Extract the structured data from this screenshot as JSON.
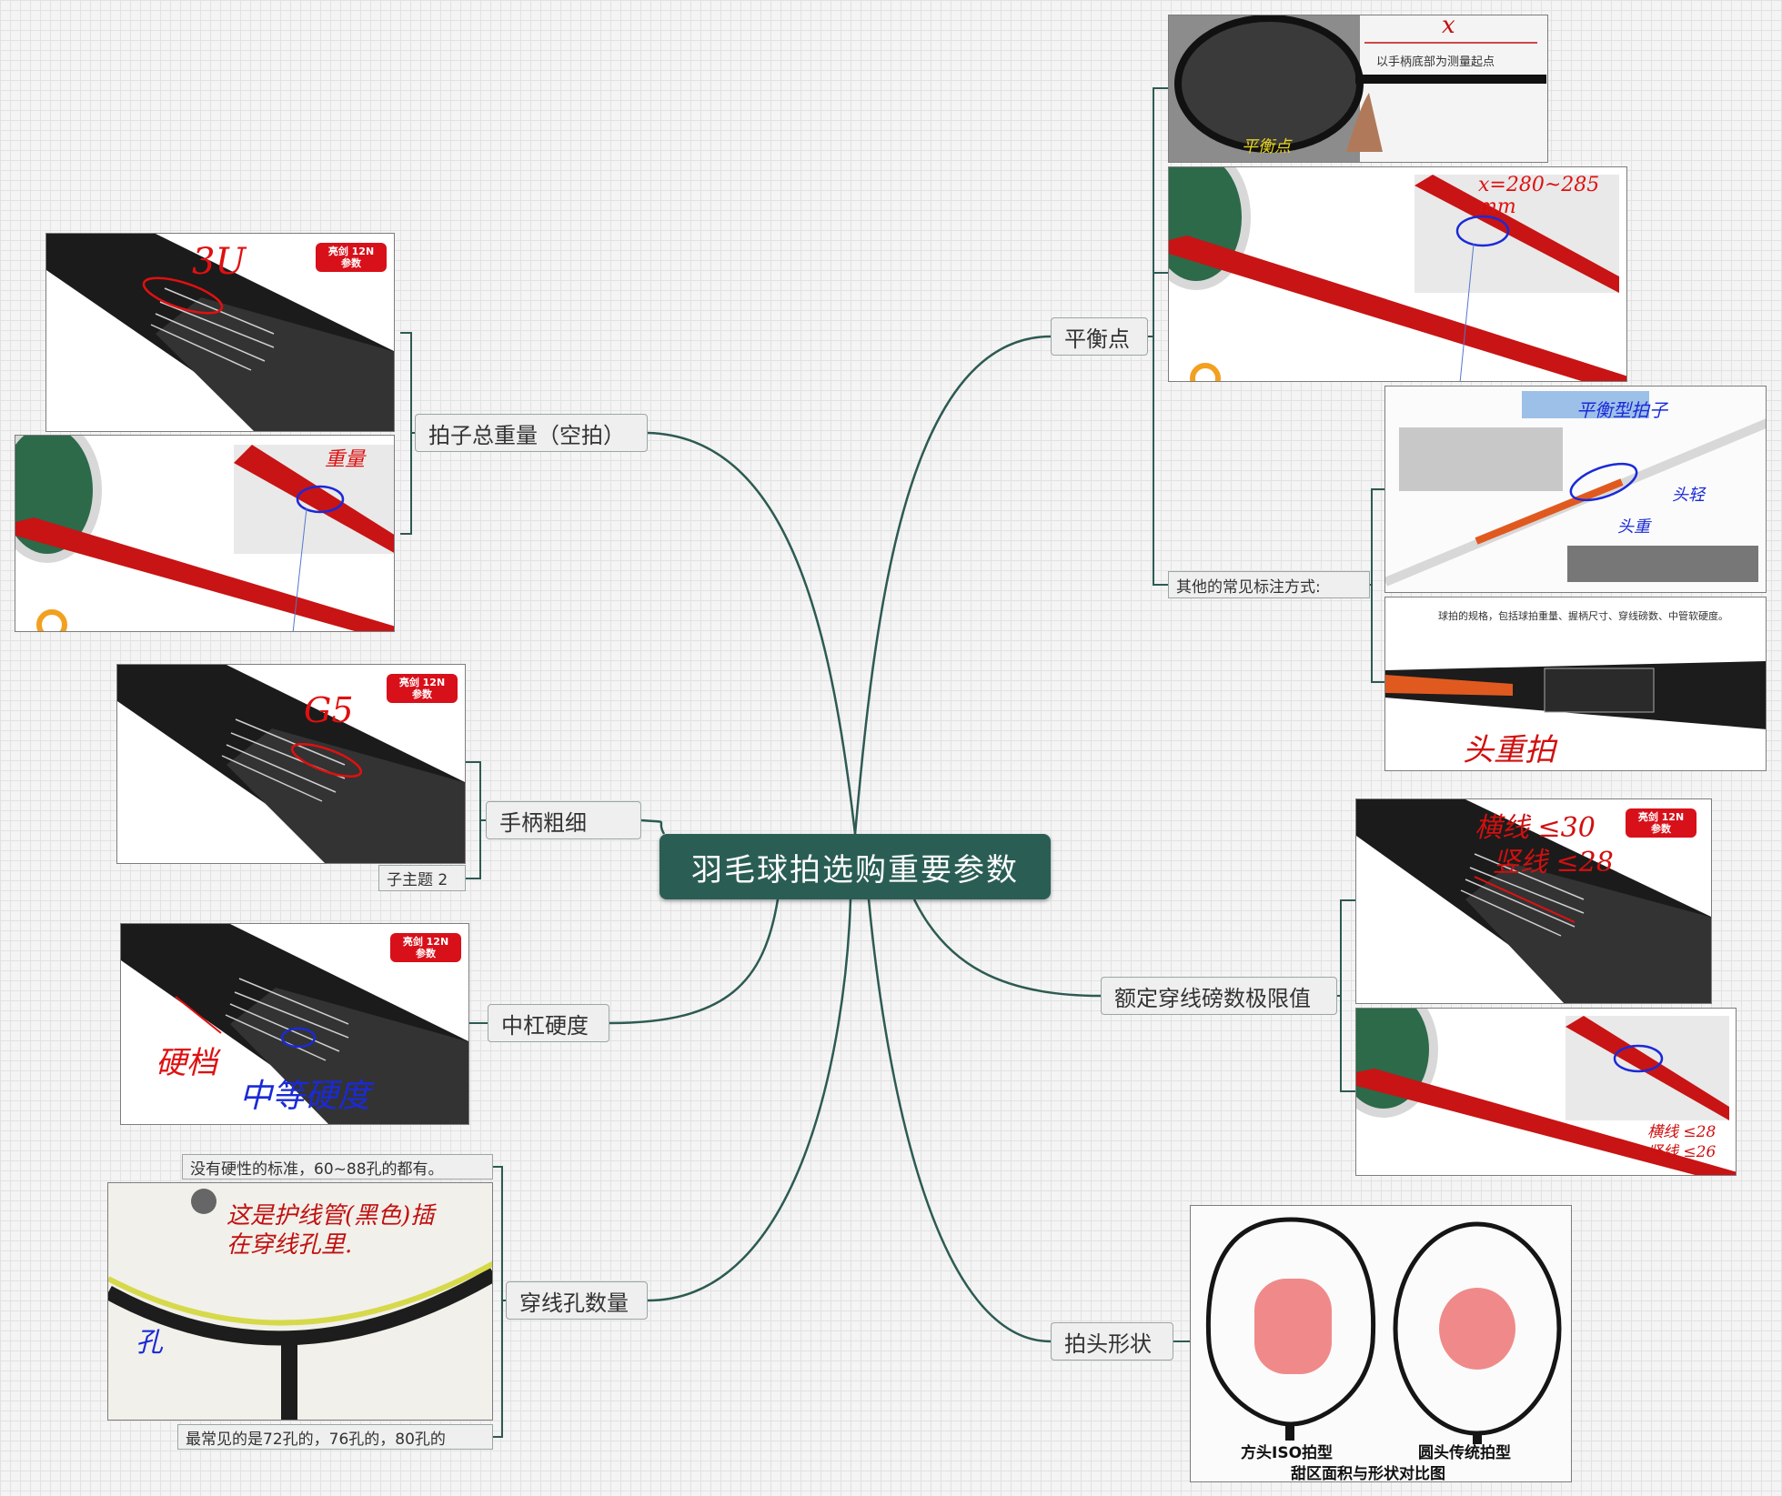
{
  "central": {
    "title": "羽毛球拍选购重要参数"
  },
  "branches": {
    "weight": "拍子总重量（空拍）",
    "grip": "手柄粗细",
    "subtopic": "子主题 2",
    "shaft": "中杠硬度",
    "holes": "穿线孔数量",
    "holes_note_top": "没有硬性的标准，60~88孔的都有。",
    "holes_note_bottom": "最常见的是72孔的，76孔的，80孔的",
    "balance": "平衡点",
    "balance_other": "其他的常见标注方式:",
    "tension": "额定穿线磅数极限值",
    "head": "拍头形状"
  },
  "images": {
    "badge": "亮剑 12N\n参数",
    "weight_hand": "3U",
    "weight_hand2": "重量",
    "grip_hand": "G5",
    "shaft_hand1": "硬档",
    "shaft_hand2": "中等硬度",
    "holes_hand": "这是护线管(黑色)插\n在穿线孔里.",
    "holes_hand2": "孔",
    "balance_x": "x",
    "balance_caption": "以手柄底部为测量起点",
    "balance_hand": "平衡点",
    "balance_hand2": "x=280~285\nmm",
    "other_hand1": "平衡型拍子",
    "other_hand2": "头重",
    "other_hand3": "头轻",
    "spec_caption": "球拍的规格，包括球拍重量、握柄尺寸、穿线磅数、中管软硬度。",
    "spec_hand": "头重拍",
    "tension_hand1": "横线 ≤30",
    "tension_hand2": "竖线 ≤28",
    "tension_hand3": "横线 ≤28\n竖线 ≤26",
    "head_label1": "方头ISO拍型",
    "head_label2": "圆头传统拍型",
    "head_caption": "甜区面积与形状对比图"
  }
}
